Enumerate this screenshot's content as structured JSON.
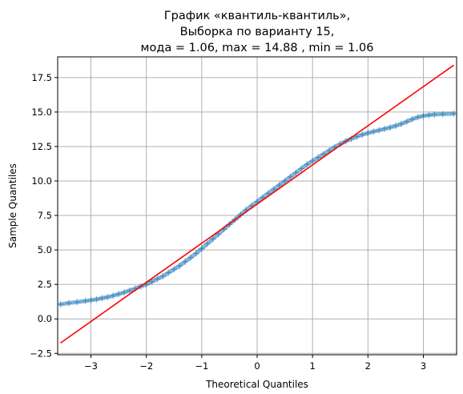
{
  "chart_data": {
    "type": "scatter",
    "title_lines": [
      "График «квантиль-квантиль»,",
      "Выборка по варианту 15,",
      "мода = 1.06, max = 14.88 , min = 1.06"
    ],
    "xlabel": "Theoretical Quantiles",
    "ylabel": "Sample Quantiles",
    "xlim": [
      -3.6,
      3.6
    ],
    "ylim": [
      -2.6,
      19.0
    ],
    "xticks": [
      -3,
      -2,
      -1,
      0,
      1,
      2,
      3
    ],
    "xtick_labels": [
      "−3",
      "−2",
      "−1",
      "0",
      "1",
      "2",
      "3"
    ],
    "yticks": [
      -2.5,
      0.0,
      2.5,
      5.0,
      7.5,
      10.0,
      12.5,
      15.0,
      17.5
    ],
    "ytick_labels": [
      "−2.5",
      "0.0",
      "2.5",
      "5.0",
      "7.5",
      "10.0",
      "12.5",
      "15.0",
      "17.5"
    ],
    "grid": true,
    "marker": "+",
    "series_color": "#1f77b4",
    "line_color": "#ff0000",
    "sample_points": [
      {
        "x": -3.55,
        "y": 1.06
      },
      {
        "x": -3.4,
        "y": 1.15
      },
      {
        "x": -3.25,
        "y": 1.22
      },
      {
        "x": -3.1,
        "y": 1.3
      },
      {
        "x": -3.0,
        "y": 1.36
      },
      {
        "x": -2.9,
        "y": 1.42
      },
      {
        "x": -2.8,
        "y": 1.5
      },
      {
        "x": -2.7,
        "y": 1.58
      },
      {
        "x": -2.6,
        "y": 1.68
      },
      {
        "x": -2.5,
        "y": 1.8
      },
      {
        "x": -2.4,
        "y": 1.92
      },
      {
        "x": -2.3,
        "y": 2.06
      },
      {
        "x": -2.2,
        "y": 2.2
      },
      {
        "x": -2.1,
        "y": 2.36
      },
      {
        "x": -2.0,
        "y": 2.5
      },
      {
        "x": -1.9,
        "y": 2.7
      },
      {
        "x": -1.8,
        "y": 2.9
      },
      {
        "x": -1.7,
        "y": 3.1
      },
      {
        "x": -1.6,
        "y": 3.35
      },
      {
        "x": -1.5,
        "y": 3.6
      },
      {
        "x": -1.4,
        "y": 3.85
      },
      {
        "x": -1.3,
        "y": 4.15
      },
      {
        "x": -1.2,
        "y": 4.45
      },
      {
        "x": -1.1,
        "y": 4.75
      },
      {
        "x": -1.0,
        "y": 5.1
      },
      {
        "x": -0.9,
        "y": 5.45
      },
      {
        "x": -0.8,
        "y": 5.8
      },
      {
        "x": -0.7,
        "y": 6.15
      },
      {
        "x": -0.6,
        "y": 6.5
      },
      {
        "x": -0.5,
        "y": 6.85
      },
      {
        "x": -0.4,
        "y": 7.2
      },
      {
        "x": -0.3,
        "y": 7.55
      },
      {
        "x": -0.2,
        "y": 7.9
      },
      {
        "x": -0.1,
        "y": 8.2
      },
      {
        "x": 0.0,
        "y": 8.5
      },
      {
        "x": 0.1,
        "y": 8.8
      },
      {
        "x": 0.2,
        "y": 9.1
      },
      {
        "x": 0.3,
        "y": 9.4
      },
      {
        "x": 0.4,
        "y": 9.7
      },
      {
        "x": 0.5,
        "y": 10.0
      },
      {
        "x": 0.6,
        "y": 10.3
      },
      {
        "x": 0.7,
        "y": 10.6
      },
      {
        "x": 0.8,
        "y": 10.9
      },
      {
        "x": 0.9,
        "y": 11.2
      },
      {
        "x": 1.0,
        "y": 11.45
      },
      {
        "x": 1.1,
        "y": 11.7
      },
      {
        "x": 1.2,
        "y": 11.95
      },
      {
        "x": 1.3,
        "y": 12.2
      },
      {
        "x": 1.4,
        "y": 12.45
      },
      {
        "x": 1.5,
        "y": 12.68
      },
      {
        "x": 1.6,
        "y": 12.88
      },
      {
        "x": 1.7,
        "y": 13.06
      },
      {
        "x": 1.8,
        "y": 13.22
      },
      {
        "x": 1.9,
        "y": 13.36
      },
      {
        "x": 2.0,
        "y": 13.48
      },
      {
        "x": 2.1,
        "y": 13.58
      },
      {
        "x": 2.2,
        "y": 13.68
      },
      {
        "x": 2.3,
        "y": 13.78
      },
      {
        "x": 2.4,
        "y": 13.88
      },
      {
        "x": 2.5,
        "y": 14.0
      },
      {
        "x": 2.6,
        "y": 14.14
      },
      {
        "x": 2.7,
        "y": 14.3
      },
      {
        "x": 2.8,
        "y": 14.48
      },
      {
        "x": 2.9,
        "y": 14.62
      },
      {
        "x": 3.0,
        "y": 14.72
      },
      {
        "x": 3.1,
        "y": 14.78
      },
      {
        "x": 3.2,
        "y": 14.82
      },
      {
        "x": 3.35,
        "y": 14.85
      },
      {
        "x": 3.55,
        "y": 14.88
      }
    ],
    "reference_line": {
      "x": [
        -3.55,
        3.55
      ],
      "y": [
        -1.75,
        18.4
      ]
    }
  }
}
